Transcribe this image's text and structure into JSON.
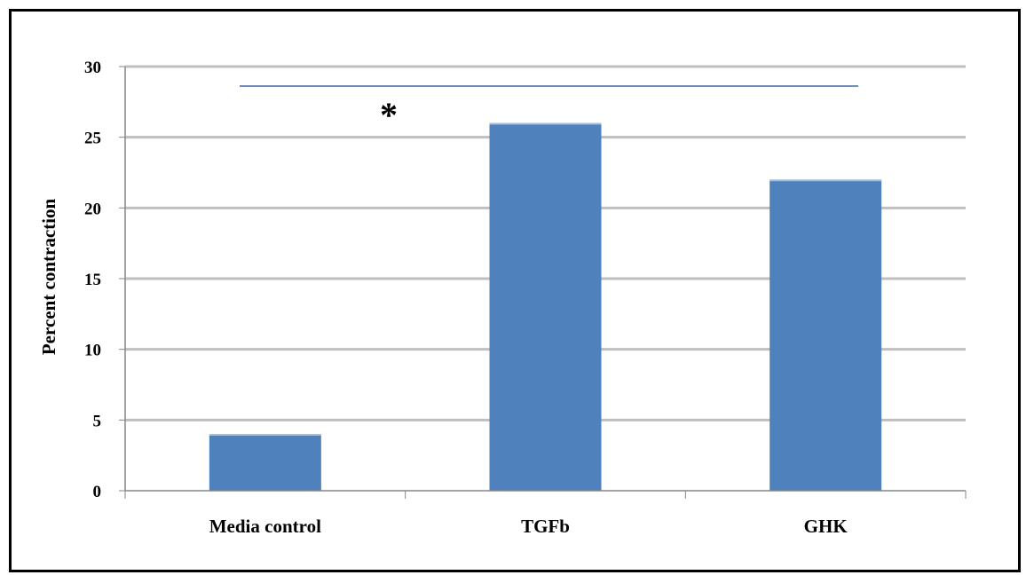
{
  "chart_data": {
    "type": "bar",
    "categories": [
      "Media control",
      "TGFb",
      "GHK"
    ],
    "values": [
      4,
      26,
      22
    ],
    "title": "",
    "xlabel": "",
    "ylabel": "Percent contraction",
    "ylim": [
      0,
      30
    ],
    "yticks": [
      0,
      5,
      10,
      15,
      20,
      25,
      30
    ],
    "grid": true,
    "legend": "none",
    "annotations": [
      {
        "text": "*",
        "meaning": "significance bracket"
      }
    ],
    "colors": {
      "bar": "#4f81bd",
      "grid": "#bfbfbf",
      "axis": "#868686",
      "bracket": "#6b8fb5"
    }
  }
}
